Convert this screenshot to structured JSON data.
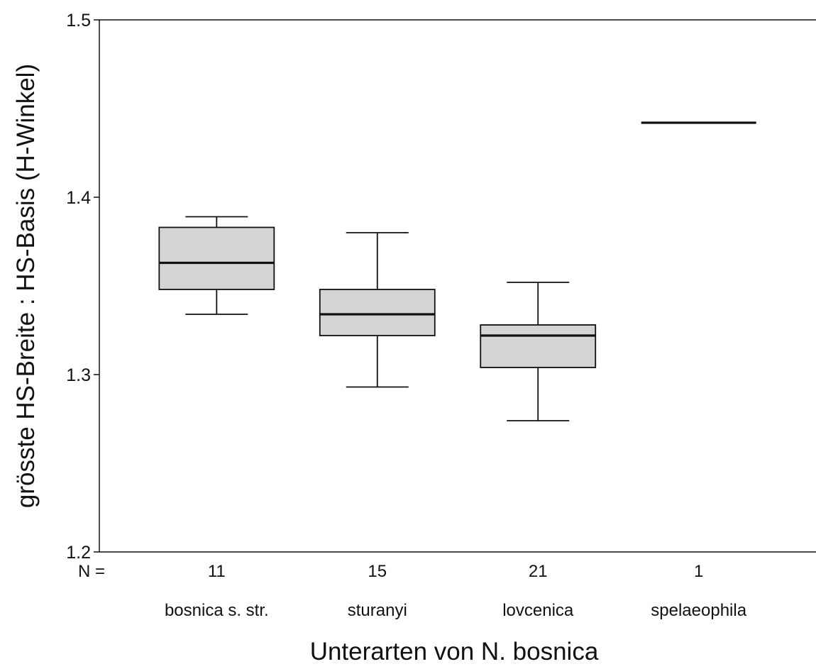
{
  "chart_data": {
    "type": "box",
    "title": "",
    "xlabel": "Unterarten von N. bosnica",
    "ylabel": "grösste HS-Breite : HS-Basis (H-Winkel)",
    "ylim": [
      1.2,
      1.5
    ],
    "yticks": [
      "1.2",
      "1.3",
      "1.4",
      "1.5"
    ],
    "n_prefix": "N =",
    "grid": false,
    "box_fill": "#d4d4d4",
    "line_color": "#111111",
    "categories": [
      "bosnica s. str.",
      "sturanyi",
      "lovcenica",
      "spelaeophila"
    ],
    "n": [
      "11",
      "15",
      "21",
      "1"
    ],
    "boxes": [
      {
        "category": "bosnica s. str.",
        "n": 11,
        "whisker_low": 1.334,
        "q1": 1.348,
        "median": 1.363,
        "q3": 1.383,
        "whisker_high": 1.389
      },
      {
        "category": "sturanyi",
        "n": 15,
        "whisker_low": 1.293,
        "q1": 1.322,
        "median": 1.334,
        "q3": 1.348,
        "whisker_high": 1.38
      },
      {
        "category": "lovcenica",
        "n": 21,
        "whisker_low": 1.274,
        "q1": 1.304,
        "median": 1.322,
        "q3": 1.328,
        "whisker_high": 1.352
      },
      {
        "category": "spelaeophila",
        "n": 1,
        "whisker_low": 1.442,
        "q1": 1.442,
        "median": 1.442,
        "q3": 1.442,
        "whisker_high": 1.442
      }
    ]
  }
}
